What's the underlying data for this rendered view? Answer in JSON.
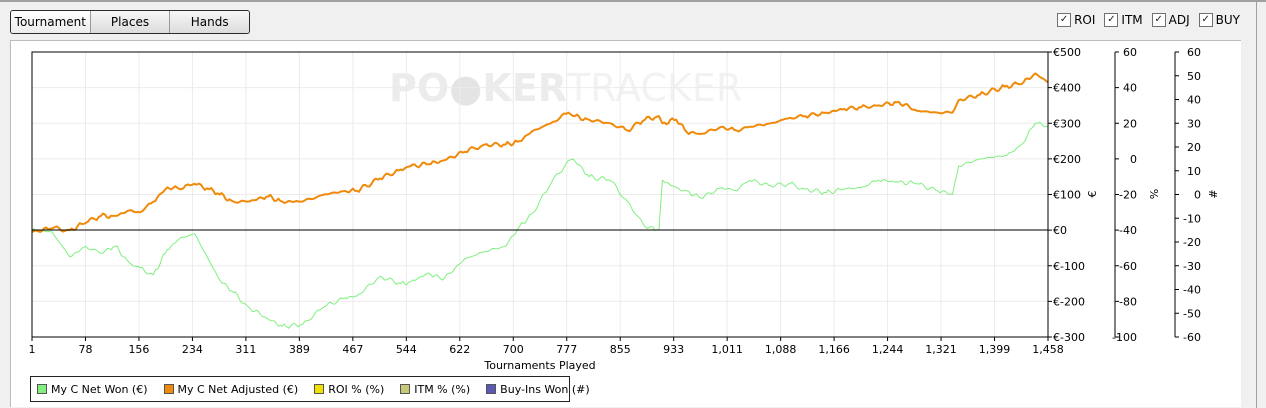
{
  "tabs": [
    {
      "label": "Tournament",
      "active": true
    },
    {
      "label": "Places",
      "active": false
    },
    {
      "label": "Hands",
      "active": false
    }
  ],
  "toggles": [
    {
      "label": "ROI",
      "checked": true
    },
    {
      "label": "ITM",
      "checked": true
    },
    {
      "label": "ADJ",
      "checked": true
    },
    {
      "label": "BUY",
      "checked": true
    }
  ],
  "watermark": {
    "part1": "PO",
    "part2": "KER",
    "part3": "TRACKER"
  },
  "legend": [
    {
      "label": "My C Net Won (€)",
      "color": "#7ff07f"
    },
    {
      "label": "My C Net Adjusted (€)",
      "color": "#f08a0a"
    },
    {
      "label": "ROI % (%)",
      "color": "#f0e000"
    },
    {
      "label": "ITM % (%)",
      "color": "#c8c878"
    },
    {
      "label": "Buy-Ins Won (#)",
      "color": "#5a5ab4"
    }
  ],
  "chart_data": {
    "type": "line",
    "title": "",
    "xlabel": "Tournaments Played",
    "xlim": [
      1,
      1458
    ],
    "x_ticks": [
      "1",
      "78",
      "156",
      "234",
      "311",
      "389",
      "467",
      "544",
      "622",
      "700",
      "777",
      "855",
      "933",
      "1,011",
      "1,088",
      "1,166",
      "1,244",
      "1,321",
      "1,399",
      "1,458"
    ],
    "grid": true,
    "y_axes": [
      {
        "label": "€",
        "range": [
          -300,
          500
        ],
        "ticks": [
          "€500",
          "€400",
          "€300",
          "€200",
          "€100",
          "€0",
          "€-100",
          "€-200",
          "€-300"
        ]
      },
      {
        "label": "%",
        "range": [
          -100,
          60
        ],
        "ticks": [
          "60",
          "40",
          "20",
          "0",
          "-20",
          "-40",
          "-60",
          "-80",
          "-100"
        ]
      },
      {
        "label": "#",
        "range": [
          -60,
          60
        ],
        "ticks": [
          "60",
          "50",
          "40",
          "30",
          "20",
          "10",
          "0",
          "-10",
          "-20",
          "-30",
          "-40",
          "-50",
          "-60"
        ]
      }
    ],
    "series": [
      {
        "name": "My C Net Won (€)",
        "color": "#7ff07f",
        "x": [
          1,
          30,
          55,
          78,
          100,
          120,
          140,
          156,
          175,
          195,
          215,
          234,
          255,
          270,
          290,
          311,
          340,
          360,
          389,
          420,
          450,
          467,
          500,
          530,
          544,
          570,
          590,
          622,
          650,
          680,
          700,
          720,
          745,
          770,
          777,
          800,
          830,
          855,
          880,
          900,
          905,
          925,
          940,
          960,
          990,
          1011,
          1030,
          1060,
          1088,
          1110,
          1140,
          1166,
          1190,
          1215,
          1244,
          1270,
          1300,
          1321,
          1330,
          1360,
          1399,
          1420,
          1440,
          1458
        ],
        "y": [
          0,
          -5,
          -75,
          -45,
          -65,
          -45,
          -90,
          -105,
          -125,
          -55,
          -20,
          -10,
          -85,
          -140,
          -175,
          -215,
          -250,
          -270,
          -265,
          -215,
          -190,
          -185,
          -130,
          -150,
          -145,
          -120,
          -140,
          -80,
          -60,
          -45,
          10,
          50,
          130,
          195,
          200,
          150,
          140,
          80,
          10,
          0,
          140,
          120,
          110,
          90,
          120,
          110,
          140,
          125,
          130,
          115,
          105,
          115,
          120,
          140,
          135,
          130,
          110,
          100,
          180,
          200,
          210,
          240,
          300,
          290
        ]
      },
      {
        "name": "My C Net Adjusted (€)",
        "color": "#f08a0a",
        "x": [
          1,
          30,
          55,
          78,
          100,
          120,
          140,
          156,
          175,
          195,
          215,
          234,
          255,
          270,
          290,
          311,
          340,
          360,
          389,
          420,
          450,
          467,
          500,
          530,
          544,
          570,
          590,
          622,
          650,
          680,
          700,
          720,
          745,
          770,
          777,
          800,
          830,
          855,
          880,
          900,
          905,
          925,
          940,
          960,
          990,
          1011,
          1030,
          1060,
          1088,
          1110,
          1140,
          1166,
          1190,
          1215,
          1244,
          1270,
          1300,
          1321,
          1330,
          1360,
          1399,
          1420,
          1440,
          1458
        ],
        "y": [
          -5,
          5,
          0,
          20,
          40,
          40,
          55,
          50,
          80,
          120,
          115,
          130,
          115,
          100,
          80,
          80,
          95,
          80,
          80,
          100,
          110,
          110,
          145,
          170,
          180,
          185,
          195,
          220,
          240,
          240,
          250,
          280,
          300,
          330,
          320,
          310,
          300,
          280,
          310,
          320,
          300,
          310,
          275,
          270,
          290,
          280,
          290,
          300,
          315,
          320,
          330,
          340,
          345,
          350,
          360,
          335,
          330,
          330,
          365,
          380,
          405,
          410,
          440,
          415
        ]
      },
      {
        "name": "ROI % (%)",
        "color": "#f0e000",
        "x": [],
        "y": []
      },
      {
        "name": "ITM % (%)",
        "color": "#c8c878",
        "x": [],
        "y": []
      },
      {
        "name": "Buy-Ins Won (#)",
        "color": "#5a5ab4",
        "x": [],
        "y": []
      }
    ]
  }
}
